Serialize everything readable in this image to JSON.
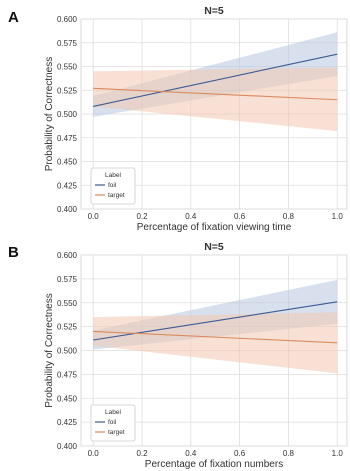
{
  "chart_data": [
    {
      "type": "line",
      "panel_label": "A",
      "title": "N=5",
      "xlabel": "Percentage of fixation viewing time",
      "ylabel": "Probability of Correctness",
      "xlim": [
        -0.05,
        1.04
      ],
      "ylim": [
        0.4,
        0.6
      ],
      "x_ticks": [
        "0.0",
        "0.2",
        "0.4",
        "0.6",
        "0.8",
        "1.0"
      ],
      "y_ticks": [
        "0.400",
        "0.425",
        "0.450",
        "0.475",
        "0.500",
        "0.525",
        "0.550",
        "0.575",
        "0.600"
      ],
      "grid": true,
      "legend": {
        "title": "Label",
        "position": "lower-left",
        "entries": [
          "foil",
          "target"
        ]
      },
      "series": [
        {
          "name": "foil",
          "color": "#3b5b94",
          "band_color": "#b8c6e0",
          "x": [
            0,
            1
          ],
          "y": [
            0.508,
            0.563
          ],
          "ci_lower": [
            0.497,
            0.54
          ],
          "ci_upper": [
            0.519,
            0.586
          ]
        },
        {
          "name": "target",
          "color": "#d98a5c",
          "band_color": "#f3c9b0",
          "x": [
            0,
            1
          ],
          "y": [
            0.527,
            0.515
          ],
          "ci_lower": [
            0.508,
            0.482
          ],
          "ci_upper": [
            0.545,
            0.549
          ]
        }
      ]
    },
    {
      "type": "line",
      "panel_label": "B",
      "title": "N=5",
      "xlabel": "Percentage of fixation numbers",
      "ylabel": "Probability of Correctness",
      "xlim": [
        -0.05,
        1.04
      ],
      "ylim": [
        0.4,
        0.6
      ],
      "x_ticks": [
        "0.0",
        "0.2",
        "0.4",
        "0.6",
        "0.8",
        "1.0"
      ],
      "y_ticks": [
        "0.400",
        "0.425",
        "0.450",
        "0.475",
        "0.500",
        "0.525",
        "0.550",
        "0.575",
        "0.600"
      ],
      "grid": true,
      "legend": {
        "title": "Label",
        "position": "lower-left",
        "entries": [
          "foil",
          "target"
        ]
      },
      "series": [
        {
          "name": "foil",
          "color": "#3b5b94",
          "band_color": "#b8c6e0",
          "x": [
            0,
            1
          ],
          "y": [
            0.511,
            0.551
          ],
          "ci_lower": [
            0.501,
            0.528
          ],
          "ci_upper": [
            0.521,
            0.574
          ]
        },
        {
          "name": "target",
          "color": "#d98a5c",
          "band_color": "#f3c9b0",
          "x": [
            0,
            1
          ],
          "y": [
            0.52,
            0.508
          ],
          "ci_lower": [
            0.505,
            0.476
          ],
          "ci_upper": [
            0.535,
            0.54
          ]
        }
      ]
    }
  ]
}
